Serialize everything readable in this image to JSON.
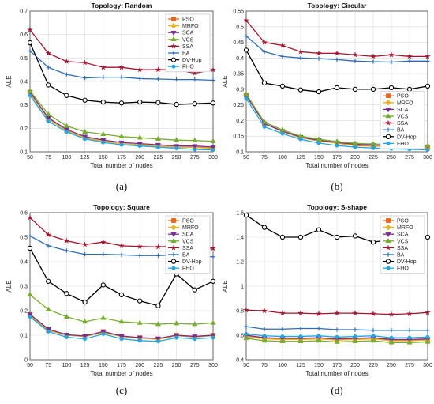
{
  "colors": {
    "PSO": "#e8651c",
    "MRFO": "#e8b223",
    "SCA": "#7b2d8e",
    "VCS": "#77ac30",
    "SSA": "#a2142f",
    "BA": "#2e6cb5",
    "DV-Hop": "#000000",
    "FHO": "#22a7e0"
  },
  "chart_data": [
    {
      "type": "line",
      "panel_label": "(a)",
      "title": "Topology: Random",
      "xlabel": "Total number of nodes",
      "ylabel": "ALE",
      "xlim": [
        50,
        300
      ],
      "ylim": [
        0.1,
        0.7
      ],
      "xticks": [
        50,
        75,
        100,
        125,
        150,
        175,
        200,
        225,
        250,
        275,
        300
      ],
      "yticks": [
        0.1,
        0.2,
        0.3,
        0.4,
        0.5,
        0.6,
        0.7
      ],
      "ytick_labels": [
        "0.1",
        "0.2",
        "0.3",
        "0.4",
        "0.5",
        "0.6",
        "0.7"
      ],
      "grid": true,
      "legend_position": "top-right",
      "x": [
        50,
        75,
        100,
        125,
        150,
        175,
        200,
        225,
        250,
        275,
        300
      ],
      "series": [
        {
          "name": "PSO",
          "marker": "square",
          "values": [
            0.35,
            0.24,
            0.19,
            0.16,
            0.145,
            0.135,
            0.13,
            0.125,
            0.12,
            0.12,
            0.115
          ]
        },
        {
          "name": "MRFO",
          "marker": "diamond",
          "values": [
            0.35,
            0.24,
            0.19,
            0.16,
            0.145,
            0.135,
            0.13,
            0.125,
            0.12,
            0.118,
            0.115
          ]
        },
        {
          "name": "SCA",
          "marker": "triangle-down",
          "values": [
            0.355,
            0.245,
            0.195,
            0.165,
            0.15,
            0.14,
            0.135,
            0.13,
            0.125,
            0.125,
            0.12
          ]
        },
        {
          "name": "VCS",
          "marker": "triangle-up",
          "values": [
            0.36,
            0.26,
            0.21,
            0.185,
            0.175,
            0.165,
            0.16,
            0.155,
            0.15,
            0.148,
            0.145
          ]
        },
        {
          "name": "SSA",
          "marker": "star",
          "values": [
            0.62,
            0.52,
            0.485,
            0.48,
            0.46,
            0.46,
            0.45,
            0.45,
            0.45,
            0.435,
            0.45
          ]
        },
        {
          "name": "BA",
          "marker": "plus",
          "values": [
            0.53,
            0.46,
            0.43,
            0.415,
            0.418,
            0.418,
            0.412,
            0.41,
            0.408,
            0.408,
            0.405
          ]
        },
        {
          "name": "DV-Hop",
          "marker": "circle",
          "values": [
            0.565,
            0.385,
            0.34,
            0.32,
            0.312,
            0.308,
            0.312,
            0.31,
            0.302,
            0.305,
            0.308
          ]
        },
        {
          "name": "FHO",
          "marker": "dot",
          "values": [
            0.34,
            0.23,
            0.185,
            0.155,
            0.14,
            0.13,
            0.125,
            0.12,
            0.115,
            0.11,
            0.108
          ]
        }
      ]
    },
    {
      "type": "line",
      "panel_label": "(b)",
      "title": "Topology: Circular",
      "xlabel": "Total number of nodes",
      "ylabel": "ALE",
      "xlim": [
        50,
        300
      ],
      "ylim": [
        0.1,
        0.55
      ],
      "xticks": [
        50,
        75,
        100,
        125,
        150,
        175,
        200,
        225,
        250,
        275,
        300
      ],
      "yticks": [
        0.1,
        0.15,
        0.2,
        0.25,
        0.3,
        0.35,
        0.4,
        0.45,
        0.5,
        0.55
      ],
      "ytick_labels": [
        "0.1",
        "0.15",
        "0.2",
        "0.25",
        "0.3",
        "0.35",
        "0.4",
        "0.45",
        "0.5",
        "0.55"
      ],
      "grid": true,
      "legend_position": "bottom-right",
      "x": [
        50,
        75,
        100,
        125,
        150,
        175,
        200,
        225,
        250,
        275,
        300
      ],
      "series": [
        {
          "name": "PSO",
          "marker": "square",
          "values": [
            0.28,
            0.19,
            0.165,
            0.145,
            0.135,
            0.128,
            0.12,
            0.118,
            0.118,
            0.115,
            0.113
          ]
        },
        {
          "name": "MRFO",
          "marker": "diamond",
          "values": [
            0.28,
            0.19,
            0.165,
            0.145,
            0.135,
            0.128,
            0.122,
            0.12,
            0.118,
            0.116,
            0.115
          ]
        },
        {
          "name": "SCA",
          "marker": "triangle-down",
          "values": [
            0.28,
            0.19,
            0.166,
            0.147,
            0.137,
            0.13,
            0.124,
            0.122,
            0.121,
            0.119,
            0.117
          ]
        },
        {
          "name": "VCS",
          "marker": "triangle-up",
          "values": [
            0.285,
            0.195,
            0.17,
            0.15,
            0.14,
            0.133,
            0.127,
            0.125,
            0.124,
            0.122,
            0.12
          ]
        },
        {
          "name": "SSA",
          "marker": "star",
          "values": [
            0.52,
            0.45,
            0.44,
            0.42,
            0.415,
            0.415,
            0.41,
            0.405,
            0.41,
            0.405,
            0.405
          ]
        },
        {
          "name": "BA",
          "marker": "plus",
          "values": [
            0.47,
            0.42,
            0.405,
            0.4,
            0.398,
            0.395,
            0.39,
            0.388,
            0.387,
            0.39,
            0.39
          ]
        },
        {
          "name": "DV-Hop",
          "marker": "circle",
          "values": [
            0.425,
            0.32,
            0.31,
            0.298,
            0.292,
            0.305,
            0.3,
            0.3,
            0.305,
            0.3,
            0.31
          ]
        },
        {
          "name": "FHO",
          "marker": "dot",
          "values": [
            0.27,
            0.18,
            0.158,
            0.14,
            0.128,
            0.12,
            0.115,
            0.112,
            0.11,
            0.108,
            0.106
          ]
        }
      ]
    },
    {
      "type": "line",
      "panel_label": "(c)",
      "title": "Topology: Square",
      "xlabel": "Total number of nodes",
      "ylabel": "ALE",
      "xlim": [
        50,
        300
      ],
      "ylim": [
        0.0,
        0.6
      ],
      "xticks": [
        50,
        75,
        100,
        125,
        150,
        175,
        200,
        225,
        250,
        275,
        300
      ],
      "yticks": [
        0.0,
        0.1,
        0.2,
        0.3,
        0.4,
        0.5,
        0.6
      ],
      "ytick_labels": [
        "0",
        "0.1",
        "0.2",
        "0.3",
        "0.4",
        "0.5",
        "0.6"
      ],
      "grid": true,
      "legend_position": "top-right",
      "x": [
        50,
        75,
        100,
        125,
        150,
        175,
        200,
        225,
        250,
        275,
        300
      ],
      "series": [
        {
          "name": "PSO",
          "marker": "square",
          "values": [
            0.185,
            0.12,
            0.1,
            0.095,
            0.115,
            0.095,
            0.09,
            0.085,
            0.1,
            0.095,
            0.1
          ]
        },
        {
          "name": "MRFO",
          "marker": "diamond",
          "values": [
            0.18,
            0.12,
            0.1,
            0.095,
            0.11,
            0.095,
            0.088,
            0.083,
            0.098,
            0.092,
            0.098
          ]
        },
        {
          "name": "SCA",
          "marker": "triangle-down",
          "values": [
            0.185,
            0.125,
            0.102,
            0.097,
            0.115,
            0.097,
            0.09,
            0.087,
            0.1,
            0.095,
            0.1
          ]
        },
        {
          "name": "VCS",
          "marker": "triangle-up",
          "values": [
            0.265,
            0.205,
            0.175,
            0.155,
            0.17,
            0.155,
            0.15,
            0.145,
            0.148,
            0.145,
            0.15
          ]
        },
        {
          "name": "SSA",
          "marker": "star",
          "values": [
            0.58,
            0.51,
            0.485,
            0.47,
            0.48,
            0.465,
            0.462,
            0.46,
            0.465,
            0.455,
            0.455
          ]
        },
        {
          "name": "BA",
          "marker": "plus",
          "values": [
            0.505,
            0.465,
            0.445,
            0.43,
            0.43,
            0.428,
            0.425,
            0.425,
            0.428,
            0.425,
            0.42
          ]
        },
        {
          "name": "DV-Hop",
          "marker": "circle",
          "values": [
            0.455,
            0.32,
            0.27,
            0.235,
            0.305,
            0.265,
            0.24,
            0.22,
            0.35,
            0.285,
            0.32
          ]
        },
        {
          "name": "FHO",
          "marker": "dot",
          "values": [
            0.175,
            0.115,
            0.092,
            0.085,
            0.105,
            0.085,
            0.078,
            0.075,
            0.09,
            0.085,
            0.09
          ]
        }
      ]
    },
    {
      "type": "line",
      "panel_label": "(d)",
      "title": "Topology: S-shape",
      "xlabel": "Total number of nodes",
      "ylabel": "ALE",
      "xlim": [
        50,
        300
      ],
      "ylim": [
        0.4,
        1.6
      ],
      "xticks": [
        50,
        75,
        100,
        125,
        150,
        175,
        200,
        225,
        250,
        275,
        300
      ],
      "yticks": [
        0.4,
        0.6,
        0.8,
        1.0,
        1.2,
        1.4,
        1.6
      ],
      "ytick_labels": [
        "0.4",
        "0.6",
        "0.8",
        "1",
        "1.2",
        "1.4",
        "1.6"
      ],
      "grid": true,
      "legend_position": "top-right",
      "x": [
        50,
        75,
        100,
        125,
        150,
        175,
        200,
        225,
        250,
        275,
        300
      ],
      "series": [
        {
          "name": "PSO",
          "marker": "square",
          "values": [
            0.595,
            0.575,
            0.57,
            0.57,
            0.575,
            0.565,
            0.57,
            0.575,
            0.56,
            0.56,
            0.565
          ]
        },
        {
          "name": "MRFO",
          "marker": "diamond",
          "values": [
            0.59,
            0.57,
            0.565,
            0.565,
            0.57,
            0.56,
            0.565,
            0.57,
            0.555,
            0.555,
            0.56
          ]
        },
        {
          "name": "SCA",
          "marker": "triangle-down",
          "values": [
            0.6,
            0.58,
            0.575,
            0.575,
            0.58,
            0.57,
            0.575,
            0.58,
            0.565,
            0.565,
            0.57
          ]
        },
        {
          "name": "VCS",
          "marker": "triangle-up",
          "values": [
            0.575,
            0.555,
            0.55,
            0.55,
            0.555,
            0.545,
            0.55,
            0.555,
            0.54,
            0.54,
            0.545
          ]
        },
        {
          "name": "SSA",
          "marker": "star",
          "values": [
            0.805,
            0.8,
            0.78,
            0.78,
            0.775,
            0.78,
            0.78,
            0.775,
            0.77,
            0.775,
            0.785
          ]
        },
        {
          "name": "BA",
          "marker": "plus",
          "values": [
            0.67,
            0.65,
            0.65,
            0.655,
            0.655,
            0.645,
            0.645,
            0.64,
            0.64,
            0.64,
            0.64
          ]
        },
        {
          "name": "DV-Hop",
          "marker": "circle",
          "values": [
            1.58,
            1.48,
            1.4,
            1.4,
            1.46,
            1.4,
            1.41,
            1.36,
            1.38,
            1.41,
            1.4
          ]
        },
        {
          "name": "FHO",
          "marker": "dot",
          "values": [
            0.61,
            0.595,
            0.59,
            0.59,
            0.595,
            0.585,
            0.59,
            0.595,
            0.58,
            0.58,
            0.585
          ]
        }
      ]
    }
  ]
}
